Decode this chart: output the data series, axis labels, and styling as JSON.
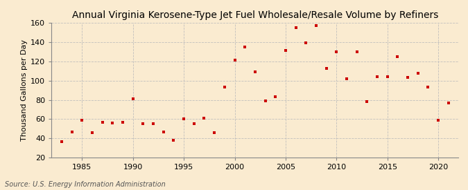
{
  "title": "Annual Virginia Kerosene-Type Jet Fuel Wholesale/Resale Volume by Refiners",
  "ylabel": "Thousand Gallons per Day",
  "source": "Source: U.S. Energy Information Administration",
  "background_color": "#faebd0",
  "plot_bg_color": "#faebd0",
  "marker_color": "#cc0000",
  "years": [
    1983,
    1984,
    1985,
    1986,
    1987,
    1988,
    1989,
    1990,
    1991,
    1992,
    1993,
    1994,
    1995,
    1996,
    1997,
    1998,
    1999,
    2000,
    2001,
    2002,
    2003,
    2004,
    2005,
    2006,
    2007,
    2008,
    2009,
    2010,
    2011,
    2012,
    2013,
    2014,
    2015,
    2016,
    2017,
    2018,
    2019,
    2020,
    2021
  ],
  "values": [
    37,
    47,
    59,
    46,
    57,
    56,
    57,
    81,
    55,
    55,
    47,
    38,
    60,
    55,
    61,
    46,
    93,
    121,
    135,
    109,
    79,
    83,
    131,
    155,
    139,
    157,
    113,
    130,
    102,
    130,
    78,
    104,
    104,
    125,
    103,
    108,
    93,
    59,
    77
  ],
  "ylim": [
    20,
    160
  ],
  "xlim": [
    1982,
    2022
  ],
  "yticks": [
    20,
    40,
    60,
    80,
    100,
    120,
    140,
    160
  ],
  "xticks": [
    1985,
    1990,
    1995,
    2000,
    2005,
    2010,
    2015,
    2020
  ],
  "grid_color": "#bbbbbb",
  "title_fontsize": 10,
  "label_fontsize": 8,
  "tick_fontsize": 8,
  "source_fontsize": 7
}
